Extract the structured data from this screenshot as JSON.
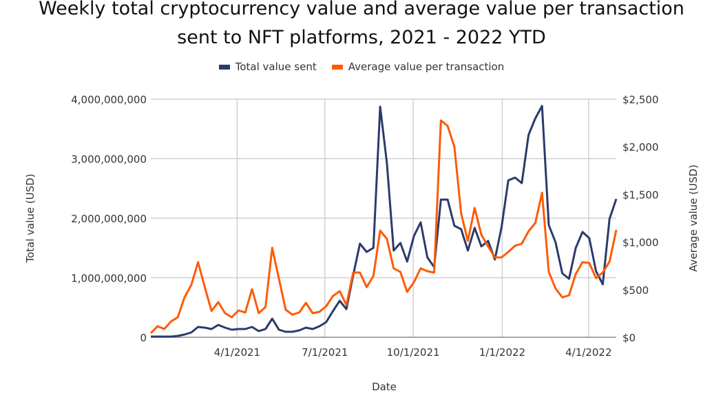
{
  "chart_data": {
    "type": "line",
    "title_lines": [
      "Weekly total cryptocurrency value and average value per transaction",
      "sent to NFT platforms, 2021 - 2022 YTD"
    ],
    "xlabel": "Date",
    "ylabel_left": "Total value (USD)",
    "ylabel_right": "Average value (USD)",
    "x_tick_labels": [
      "4/1/2021",
      "7/1/2021",
      "10/1/2021",
      "1/1/2022",
      "4/1/2022"
    ],
    "x_tick_week_index": [
      12.8,
      25.8,
      38.9,
      52.1,
      64.9
    ],
    "weeks": 70,
    "ylim_left": [
      0,
      4000000000
    ],
    "ylim_right": [
      0,
      2500
    ],
    "y_ticks_left": [
      "0",
      "1,000,000,000",
      "2,000,000,000",
      "3,000,000,000",
      "4,000,000,000"
    ],
    "y_ticks_right": [
      "$0",
      "$500",
      "$1,000",
      "$1,500",
      "$2,000",
      "$2,500"
    ],
    "grid": true,
    "legend_position": "top",
    "series": [
      {
        "name": "Total value sent",
        "axis": "left",
        "color": "#2b3a6b",
        "values_millions": [
          12,
          12,
          12,
          12,
          23,
          46,
          81,
          173,
          162,
          139,
          208,
          162,
          127,
          139,
          139,
          173,
          104,
          139,
          312,
          127,
          92,
          92,
          116,
          162,
          139,
          185,
          254,
          439,
          613,
          474,
          1040,
          1572,
          1433,
          1503,
          3873,
          2925,
          1457,
          1584,
          1272,
          1699,
          1931,
          1341,
          1179,
          2312,
          2312,
          1873,
          1815,
          1457,
          1838,
          1526,
          1618,
          1306,
          1850,
          2636,
          2682,
          2590,
          3399,
          3676,
          3884,
          1884,
          1595,
          1075,
          983,
          1503,
          1769,
          1665,
          1110,
          890,
          1988,
          2324
        ]
      },
      {
        "name": "Average value per transaction",
        "axis": "right",
        "color": "#ff5a00",
        "values": [
          43,
          116,
          87,
          166,
          210,
          419,
          549,
          788,
          527,
          275,
          369,
          253,
          210,
          282,
          260,
          506,
          253,
          318,
          939,
          614,
          289,
          238,
          260,
          361,
          253,
          267,
          325,
          433,
          484,
          339,
          679,
          679,
          527,
          643,
          1120,
          1033,
          723,
          686,
          477,
          578,
          723,
          694,
          679,
          2276,
          2218,
          2001,
          1300,
          1011,
          1358,
          1076,
          953,
          838,
          838,
          896,
          961,
          983,
          1113,
          1199,
          1517,
          686,
          513,
          419,
          441,
          665,
          788,
          780,
          621,
          679,
          795,
          1127
        ]
      }
    ]
  }
}
